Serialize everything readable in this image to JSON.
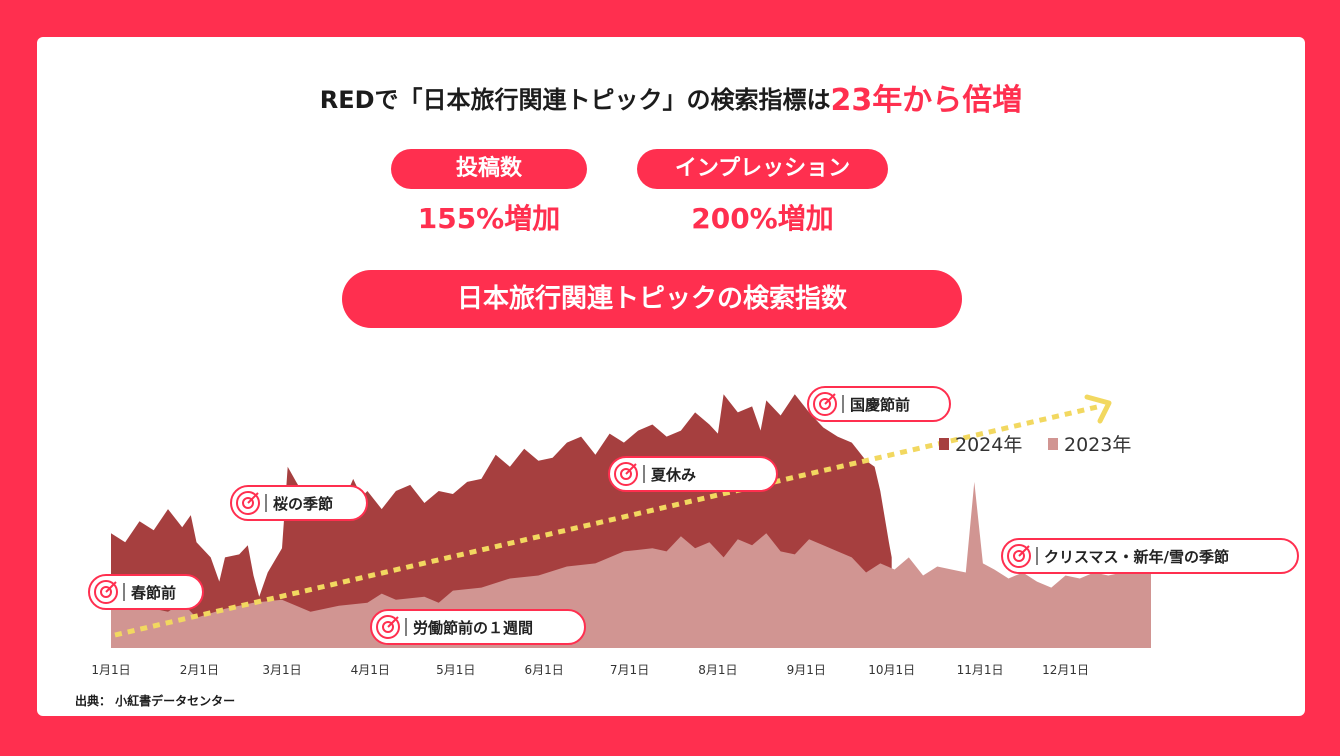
{
  "header": {
    "title_prefix": "REDで「日本旅行関連トピック」の検索指標は",
    "title_highlight": "23年から倍増"
  },
  "stats": [
    {
      "label": "投稿数",
      "value": "155%増加"
    },
    {
      "label": "インプレッション",
      "value": "200%増加"
    }
  ],
  "chart_title": "日本旅行関連トピックの検索指数",
  "source": "出典： 小紅書データセンター",
  "colors": {
    "accent": "#ff2f4f",
    "series_2024": "#a63f3f",
    "series_2023": "#d19592",
    "trend_arrow": "#f2d860"
  },
  "chart_data": {
    "type": "area",
    "title": "日本旅行関連トピックの検索指数",
    "xlabel": "",
    "ylabel": "",
    "x_ticks": [
      "1月1日",
      "2月1日",
      "3月1日",
      "4月1日",
      "5月1日",
      "6月1日",
      "7月1日",
      "8月1日",
      "9月1日",
      "10月1日",
      "11月1日",
      "12月1日"
    ],
    "x_range_days": [
      0,
      365
    ],
    "y_range": [
      0,
      100
    ],
    "grid": false,
    "legend_position": "right",
    "series": [
      {
        "name": "2024年",
        "color": "#a63f3f",
        "points": [
          [
            0,
            38
          ],
          [
            5,
            35
          ],
          [
            10,
            42
          ],
          [
            15,
            39
          ],
          [
            20,
            46
          ],
          [
            25,
            40
          ],
          [
            28,
            44
          ],
          [
            30,
            35
          ],
          [
            35,
            30
          ],
          [
            38,
            22
          ],
          [
            40,
            30
          ],
          [
            45,
            31
          ],
          [
            48,
            34
          ],
          [
            50,
            24
          ],
          [
            52,
            17
          ],
          [
            55,
            25
          ],
          [
            60,
            33
          ],
          [
            62,
            60
          ],
          [
            65,
            55
          ],
          [
            70,
            47
          ],
          [
            75,
            50
          ],
          [
            78,
            52
          ],
          [
            80,
            45
          ],
          [
            85,
            56
          ],
          [
            88,
            50
          ],
          [
            90,
            52
          ],
          [
            95,
            46
          ],
          [
            100,
            52
          ],
          [
            105,
            54
          ],
          [
            110,
            48
          ],
          [
            115,
            52
          ],
          [
            120,
            51
          ],
          [
            125,
            55
          ],
          [
            130,
            56
          ],
          [
            135,
            64
          ],
          [
            140,
            60
          ],
          [
            145,
            66
          ],
          [
            150,
            62
          ],
          [
            155,
            63
          ],
          [
            160,
            68
          ],
          [
            165,
            70
          ],
          [
            170,
            64
          ],
          [
            175,
            71
          ],
          [
            180,
            68
          ],
          [
            185,
            72
          ],
          [
            190,
            74
          ],
          [
            195,
            70
          ],
          [
            200,
            72
          ],
          [
            205,
            78
          ],
          [
            210,
            74
          ],
          [
            213,
            71
          ],
          [
            215,
            84
          ],
          [
            220,
            78
          ],
          [
            225,
            80
          ],
          [
            228,
            72
          ],
          [
            230,
            82
          ],
          [
            235,
            77
          ],
          [
            240,
            84
          ],
          [
            245,
            78
          ],
          [
            250,
            73
          ],
          [
            255,
            70
          ],
          [
            260,
            68
          ],
          [
            265,
            62
          ],
          [
            268,
            60
          ],
          [
            270,
            52
          ],
          [
            273,
            35
          ],
          [
            274,
            30
          ]
        ]
      },
      {
        "name": "2023年",
        "color": "#d19592",
        "points": [
          [
            0,
            18
          ],
          [
            10,
            14
          ],
          [
            20,
            12
          ],
          [
            25,
            15
          ],
          [
            30,
            10
          ],
          [
            40,
            13
          ],
          [
            50,
            15
          ],
          [
            60,
            16
          ],
          [
            70,
            12
          ],
          [
            80,
            14
          ],
          [
            90,
            15
          ],
          [
            95,
            18
          ],
          [
            100,
            16
          ],
          [
            110,
            17
          ],
          [
            115,
            15
          ],
          [
            120,
            19
          ],
          [
            130,
            20
          ],
          [
            140,
            23
          ],
          [
            150,
            24
          ],
          [
            160,
            27
          ],
          [
            170,
            28
          ],
          [
            180,
            32
          ],
          [
            190,
            33
          ],
          [
            195,
            32
          ],
          [
            200,
            37
          ],
          [
            205,
            33
          ],
          [
            210,
            35
          ],
          [
            215,
            30
          ],
          [
            220,
            36
          ],
          [
            225,
            34
          ],
          [
            230,
            38
          ],
          [
            235,
            32
          ],
          [
            240,
            31
          ],
          [
            245,
            36
          ],
          [
            250,
            34
          ],
          [
            255,
            32
          ],
          [
            260,
            30
          ],
          [
            265,
            25
          ],
          [
            270,
            28
          ],
          [
            275,
            26
          ],
          [
            280,
            30
          ],
          [
            285,
            24
          ],
          [
            290,
            27
          ],
          [
            295,
            26
          ],
          [
            300,
            25
          ],
          [
            303,
            55
          ],
          [
            306,
            28
          ],
          [
            310,
            26
          ],
          [
            315,
            23
          ],
          [
            320,
            25
          ],
          [
            325,
            22
          ],
          [
            330,
            20
          ],
          [
            335,
            24
          ],
          [
            340,
            23
          ],
          [
            345,
            25
          ],
          [
            350,
            24
          ],
          [
            355,
            25
          ],
          [
            360,
            25
          ],
          [
            365,
            25
          ]
        ]
      }
    ],
    "annotations": [
      "春節前",
      "桜の季節",
      "労働節前の１週間",
      "夏休み",
      "国慶節前",
      "クリスマス・新年/雪の季節"
    ]
  }
}
